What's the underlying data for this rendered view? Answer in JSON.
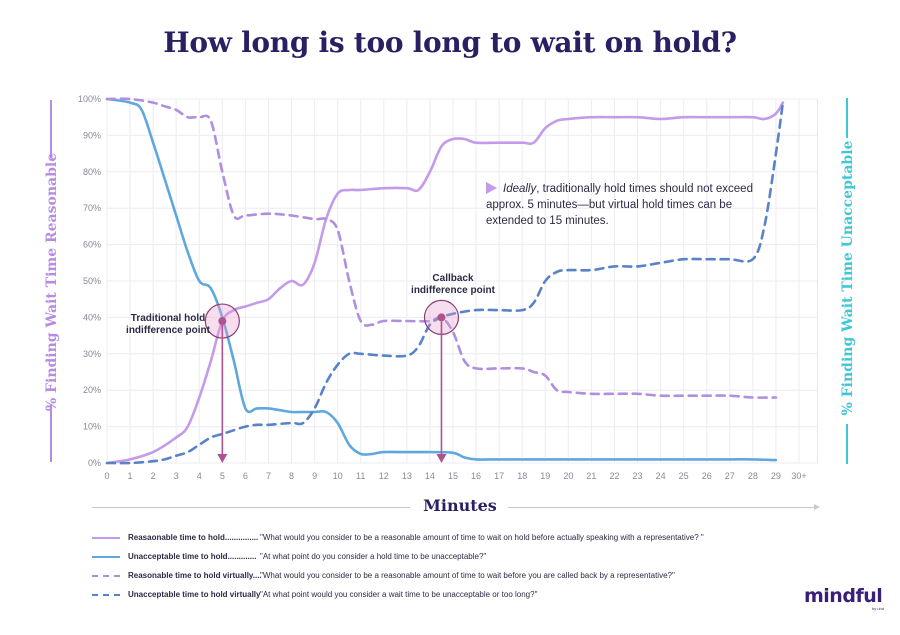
{
  "title": "How long is too long to wait on hold?",
  "ylabel_left": "% Finding Wait Time Reasonable",
  "ylabel_right": "% Finding Wait Time Unacceptable",
  "xlabel": "Minutes",
  "colors": {
    "title": "#2b1f63",
    "hold_reasonable": "#c49be8",
    "hold_unacceptable": "#5fa8de",
    "virtual_reasonable": "#b08ee0",
    "virtual_unacceptable": "#5a82c8",
    "intersection": "#b0528e"
  },
  "callouts": {
    "traditional": "Traditional hold indifference point",
    "callback": "Callback indifference point"
  },
  "note": {
    "italic": "Ideally",
    "text": ", traditionally hold times should not exceed approx. 5 minutes—but virtual hold times can be extended to 15 minutes."
  },
  "legend": [
    {
      "label": "Reasaonable time to hold...............",
      "question": "\"What would you consider to be a reasonable amount of time to wait on hold before actually speaking with a representative? \""
    },
    {
      "label": "Unacceptable time to hold.............",
      "question": "\"At what point do you consider a hold time to be unacceptable?\""
    },
    {
      "label": "Reasonable time to hold virtually....",
      "question": "\"What would you consider to be a reasonable amount of time to wait before you are called back by a representative?\""
    },
    {
      "label": "Unacceptable time to hold virtually",
      "question": "\"At what point would you consider a wait time to be unacceptable or too long?\""
    }
  ],
  "logo": {
    "name": "mindful",
    "sub": "by uhd"
  },
  "chart_data": {
    "type": "line",
    "x_ticks": [
      "0",
      "1",
      "2",
      "3",
      "4",
      "5",
      "6",
      "7",
      "8",
      "9",
      "10",
      "11",
      "12",
      "13",
      "14",
      "15",
      "16",
      "17",
      "18",
      "19",
      "20",
      "21",
      "22",
      "23",
      "24",
      "25",
      "26",
      "27",
      "28",
      "29",
      "30+"
    ],
    "y_ticks": [
      "0%",
      "10%",
      "20%",
      "30%",
      "40%",
      "50%",
      "60%",
      "70%",
      "80%",
      "90%",
      "100%"
    ],
    "xlim": [
      0,
      30
    ],
    "ylim": [
      0,
      100
    ],
    "grid": true,
    "series": [
      {
        "name": "Reasaonable time to hold",
        "style": "solid",
        "x": [
          0,
          1,
          2,
          3,
          3.5,
          4,
          4.5,
          5,
          5.5,
          6,
          6.5,
          7,
          7.5,
          8,
          8.5,
          9,
          9.5,
          10,
          10.5,
          11,
          12,
          13,
          13.5,
          14,
          14.5,
          15,
          15.5,
          16,
          17,
          18,
          18.5,
          19,
          19.5,
          20,
          21,
          22,
          23,
          24,
          25,
          26,
          27,
          28,
          28.5,
          29,
          29.3
        ],
        "y": [
          0,
          1,
          3,
          7,
          10,
          18,
          28,
          39,
          42,
          43,
          44,
          45,
          48,
          50,
          49,
          55,
          67,
          74,
          75,
          75,
          75.5,
          75.5,
          75,
          80,
          87,
          89,
          89,
          88,
          88,
          88,
          88,
          92,
          94,
          94.5,
          95,
          95,
          95,
          94.5,
          95,
          95,
          95,
          95,
          94.5,
          96,
          99
        ]
      },
      {
        "name": "Unacceptable time to hold",
        "style": "solid",
        "x": [
          0,
          1,
          1.5,
          2,
          2.5,
          3,
          3.5,
          4,
          4.5,
          5,
          5.5,
          6,
          6.5,
          7,
          7.5,
          8,
          8.5,
          9,
          9.5,
          10,
          10.5,
          11,
          11.5,
          12,
          13,
          14,
          15,
          15.5,
          16,
          17,
          18,
          19,
          20,
          21,
          22,
          23,
          24,
          25,
          26,
          27,
          28,
          29
        ],
        "y": [
          100,
          99,
          97,
          88,
          78,
          68,
          58,
          50,
          48,
          40,
          28,
          15,
          15,
          15,
          14.5,
          14,
          14,
          14,
          14,
          11,
          5,
          2.5,
          2.5,
          3,
          3,
          3,
          2.8,
          1.5,
          1,
          1,
          1,
          1,
          1,
          1,
          1,
          1,
          1,
          1,
          1,
          1,
          1,
          0.8
        ]
      },
      {
        "name": "Reasonable time to hold virtually",
        "style": "dashed",
        "x": [
          0,
          1,
          2,
          2.5,
          3,
          3.5,
          4,
          4.5,
          5,
          5.5,
          6,
          7,
          8,
          9,
          9.5,
          10,
          10.5,
          11,
          11.5,
          12,
          13,
          14,
          14.5,
          15,
          15.5,
          16,
          17,
          18,
          18.5,
          19,
          19.5,
          20,
          21,
          22,
          23,
          24,
          25,
          26,
          27,
          28,
          29
        ],
        "y": [
          100,
          100,
          99,
          98,
          97,
          95,
          95,
          94,
          80,
          68,
          68,
          68.5,
          68,
          67,
          67,
          64,
          50,
          39,
          38,
          39,
          39,
          39,
          40,
          36,
          28,
          26,
          26,
          26,
          25,
          24,
          20,
          19.5,
          19,
          19,
          19,
          18.5,
          18.5,
          18.5,
          18.5,
          18,
          18
        ]
      },
      {
        "name": "Unacceptable time to hold virtually",
        "style": "dashed",
        "x": [
          0,
          1,
          2,
          2.5,
          3,
          3.5,
          4,
          4.5,
          5,
          5.5,
          6,
          6.5,
          7,
          8,
          8.5,
          9,
          9.5,
          10,
          10.5,
          11,
          12,
          13,
          13.5,
          14,
          14.5,
          15,
          16,
          17,
          18,
          18.5,
          19,
          19.5,
          20,
          21,
          22,
          23,
          24,
          25,
          26,
          27,
          28,
          28.5,
          29,
          29.3
        ],
        "y": [
          0,
          0,
          0.5,
          1,
          2,
          3,
          5,
          7,
          8,
          9,
          10,
          10.5,
          10.5,
          11,
          11,
          15,
          22,
          27,
          30,
          30,
          29.5,
          29.5,
          32,
          38,
          40,
          41,
          42,
          42,
          42,
          44,
          50,
          52.5,
          53,
          53,
          54,
          54,
          55,
          56,
          56,
          56,
          56,
          65,
          85,
          99
        ]
      }
    ],
    "intersections": [
      {
        "x": 5,
        "y": 39
      },
      {
        "x": 14.5,
        "y": 40
      }
    ]
  }
}
